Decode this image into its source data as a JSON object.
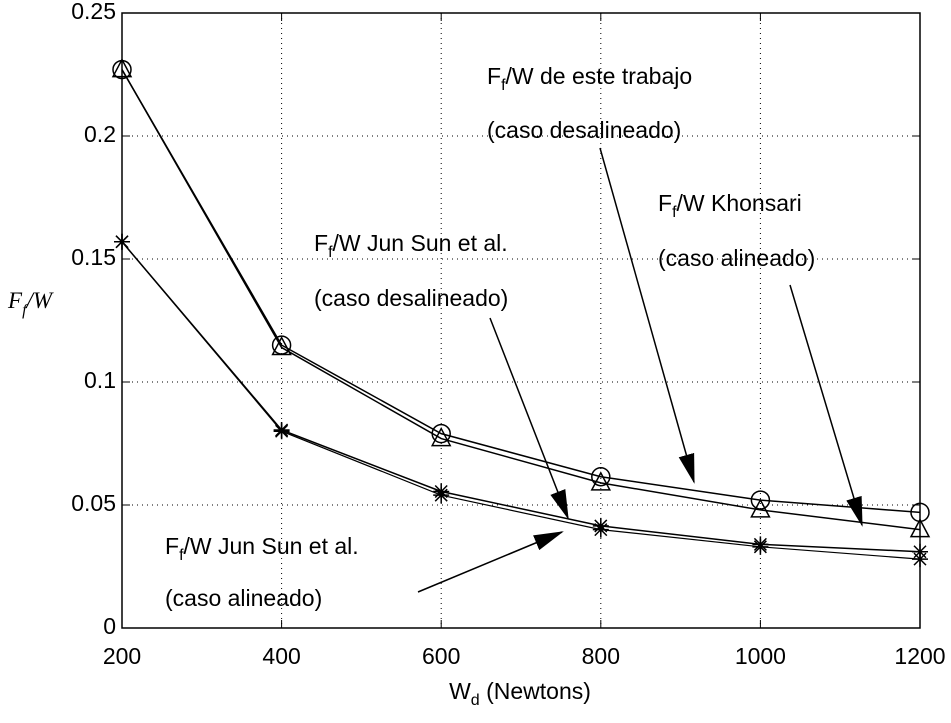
{
  "chart_data": {
    "type": "line",
    "xlabel": [
      "W",
      "d",
      " (Newtons)"
    ],
    "ylabel": [
      "F",
      "f",
      "/W"
    ],
    "x": [
      200,
      400,
      600,
      800,
      1000,
      1200
    ],
    "series": [
      {
        "color": "#000000",
        "marker": "circle",
        "values": [
          0.227,
          0.115,
          0.079,
          0.0615,
          0.052,
          0.047
        ]
      },
      {
        "color": "#000000",
        "marker": "triangle",
        "values": [
          0.227,
          0.114,
          0.077,
          0.059,
          0.048,
          0.04
        ]
      },
      {
        "color": "#000000",
        "marker": "star",
        "values": [
          0.157,
          0.0805,
          0.0555,
          0.0415,
          0.034,
          0.031
        ]
      },
      {
        "color": "#000000",
        "marker": "star",
        "values": [
          0.157,
          0.08,
          0.054,
          0.04,
          0.033,
          0.028
        ]
      }
    ],
    "xlim": [
      200,
      1200
    ],
    "ylim": [
      0,
      0.25
    ],
    "xticks": [
      200,
      400,
      600,
      800,
      1000,
      1200
    ],
    "yticks": [
      0,
      0.05,
      0.1,
      0.15,
      0.2,
      0.25
    ],
    "grid": true,
    "annotations": [
      {
        "lines": [
          [
            "F",
            "f",
            "/W de este trabajo"
          ],
          [
            "(caso desalineado)"
          ]
        ]
      },
      {
        "lines": [
          [
            "F",
            "f",
            "/W Khonsari"
          ],
          [
            "(caso alineado)"
          ]
        ]
      },
      {
        "lines": [
          [
            "F",
            "f",
            "/W Jun Sun et al."
          ],
          [
            "(caso desalineado)"
          ]
        ]
      },
      {
        "lines": [
          [
            "F",
            "f",
            "/W Jun Sun et al."
          ],
          [
            "(caso alineado)"
          ]
        ]
      }
    ]
  }
}
